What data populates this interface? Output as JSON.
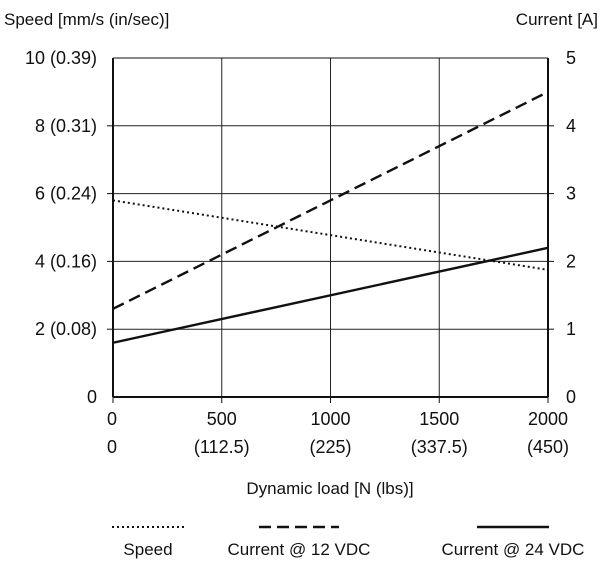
{
  "chart_data": {
    "type": "line",
    "y_left_label": "Speed [mm/s (in/sec)]",
    "y_right_label": "Current [A]",
    "xlabel": "Dynamic load [N (lbs)]",
    "xlim": [
      0,
      2000
    ],
    "ylim_left": [
      0,
      10
    ],
    "ylim_right": [
      0,
      5
    ],
    "grid": true,
    "x_ticks": [
      {
        "value": 0,
        "label": "0",
        "sublabel": "0"
      },
      {
        "value": 500,
        "label": "500",
        "sublabel": "(112.5)"
      },
      {
        "value": 1000,
        "label": "1000",
        "sublabel": "(225)"
      },
      {
        "value": 1500,
        "label": "1500",
        "sublabel": "(337.5)"
      },
      {
        "value": 2000,
        "label": "2000",
        "sublabel": "(450)"
      }
    ],
    "y_left_ticks": [
      {
        "value": 0,
        "label": "0"
      },
      {
        "value": 2,
        "label": "2 (0.08)"
      },
      {
        "value": 4,
        "label": "4 (0.16)"
      },
      {
        "value": 6,
        "label": "6 (0.24)"
      },
      {
        "value": 8,
        "label": "8 (0.31)"
      },
      {
        "value": 10,
        "label": "10 (0.39)"
      }
    ],
    "y_right_ticks": [
      {
        "value": 0,
        "label": "0"
      },
      {
        "value": 1,
        "label": "1"
      },
      {
        "value": 2,
        "label": "2"
      },
      {
        "value": 3,
        "label": "3"
      },
      {
        "value": 4,
        "label": "4"
      },
      {
        "value": 5,
        "label": "5"
      }
    ],
    "series": [
      {
        "name": "Speed",
        "axis": "left",
        "style": "dotted",
        "x": [
          0,
          2000
        ],
        "y": [
          5.8,
          3.75
        ]
      },
      {
        "name": "Current @ 12 VDC",
        "axis": "right",
        "style": "dashed",
        "x": [
          0,
          2000
        ],
        "y": [
          1.3,
          4.5
        ]
      },
      {
        "name": "Current @ 24 VDC",
        "axis": "right",
        "style": "solid",
        "x": [
          0,
          2000
        ],
        "y": [
          0.8,
          2.2
        ]
      }
    ],
    "legend_placement": "bottom"
  }
}
